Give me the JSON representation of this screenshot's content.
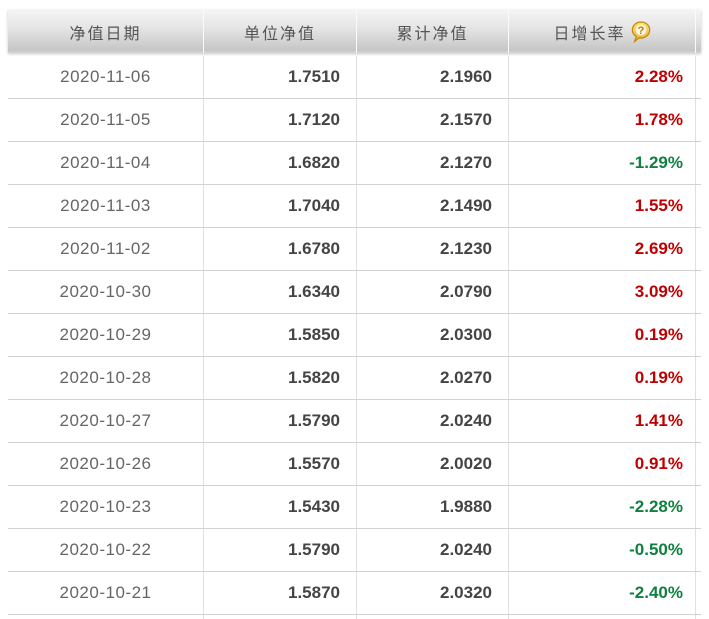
{
  "table": {
    "columns": [
      {
        "key": "date",
        "label": "净值日期"
      },
      {
        "key": "unit_value",
        "label": "单位净值"
      },
      {
        "key": "cumulative_value",
        "label": "累计净值"
      },
      {
        "key": "growth",
        "label": "日增长率",
        "help_icon": "question-mark-balloon-icon"
      }
    ],
    "rows": [
      {
        "date": "2020-11-06",
        "unit_value": "1.7510",
        "cumulative_value": "2.1960",
        "growth": "2.28%",
        "trend": "up"
      },
      {
        "date": "2020-11-05",
        "unit_value": "1.7120",
        "cumulative_value": "2.1570",
        "growth": "1.78%",
        "trend": "up"
      },
      {
        "date": "2020-11-04",
        "unit_value": "1.6820",
        "cumulative_value": "2.1270",
        "growth": "-1.29%",
        "trend": "down"
      },
      {
        "date": "2020-11-03",
        "unit_value": "1.7040",
        "cumulative_value": "2.1490",
        "growth": "1.55%",
        "trend": "up"
      },
      {
        "date": "2020-11-02",
        "unit_value": "1.6780",
        "cumulative_value": "2.1230",
        "growth": "2.69%",
        "trend": "up"
      },
      {
        "date": "2020-10-30",
        "unit_value": "1.6340",
        "cumulative_value": "2.0790",
        "growth": "3.09%",
        "trend": "up"
      },
      {
        "date": "2020-10-29",
        "unit_value": "1.5850",
        "cumulative_value": "2.0300",
        "growth": "0.19%",
        "trend": "up"
      },
      {
        "date": "2020-10-28",
        "unit_value": "1.5820",
        "cumulative_value": "2.0270",
        "growth": "0.19%",
        "trend": "up"
      },
      {
        "date": "2020-10-27",
        "unit_value": "1.5790",
        "cumulative_value": "2.0240",
        "growth": "1.41%",
        "trend": "up"
      },
      {
        "date": "2020-10-26",
        "unit_value": "1.5570",
        "cumulative_value": "2.0020",
        "growth": "0.91%",
        "trend": "up"
      },
      {
        "date": "2020-10-23",
        "unit_value": "1.5430",
        "cumulative_value": "1.9880",
        "growth": "-2.28%",
        "trend": "down"
      },
      {
        "date": "2020-10-22",
        "unit_value": "1.5790",
        "cumulative_value": "2.0240",
        "growth": "-0.50%",
        "trend": "down"
      },
      {
        "date": "2020-10-21",
        "unit_value": "1.5870",
        "cumulative_value": "2.0320",
        "growth": "-2.40%",
        "trend": "down"
      }
    ],
    "partial_row_visible": true,
    "colors": {
      "up": "#c00000",
      "down": "#0f8040",
      "header_text": "#555555",
      "date_text": "#666666",
      "value_text": "#444444",
      "icon_gold": "#e9a93d"
    }
  }
}
